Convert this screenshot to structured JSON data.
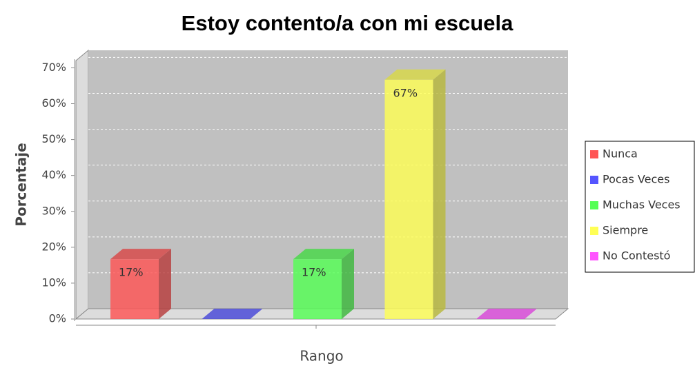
{
  "chart_data": {
    "type": "bar3d",
    "title": "Estoy contento/a con mi escuela",
    "x_label": "Rango",
    "y_label": "Porcentaje",
    "categories": [
      null
    ],
    "series": [
      {
        "name": "Nunca",
        "color": "#ff5555",
        "values": [
          16.67
        ],
        "value_labels": [
          "17%"
        ]
      },
      {
        "name": "Pocas Veces",
        "color": "#5555ff",
        "values": [
          0
        ]
      },
      {
        "name": "Muchas Veces",
        "color": "#55ff55",
        "values": [
          16.67
        ],
        "value_labels": [
          "17%"
        ]
      },
      {
        "name": "Siempre",
        "color": "#ffff55",
        "values": [
          66.67
        ],
        "value_labels": [
          "67%"
        ]
      },
      {
        "name": "No Contestó",
        "color": "#ff55ff",
        "values": [
          0
        ]
      }
    ],
    "ylim": [
      0,
      72
    ],
    "yticks": [
      {
        "value": 0,
        "label": "0%"
      },
      {
        "value": 10,
        "label": "10%"
      },
      {
        "value": 20,
        "label": "20%"
      },
      {
        "value": 30,
        "label": "30%"
      },
      {
        "value": 40,
        "label": "40%"
      },
      {
        "value": 50,
        "label": "50%"
      },
      {
        "value": 60,
        "label": "60%"
      },
      {
        "value": 70,
        "label": "70%"
      }
    ],
    "grid": true,
    "legend": "right"
  }
}
